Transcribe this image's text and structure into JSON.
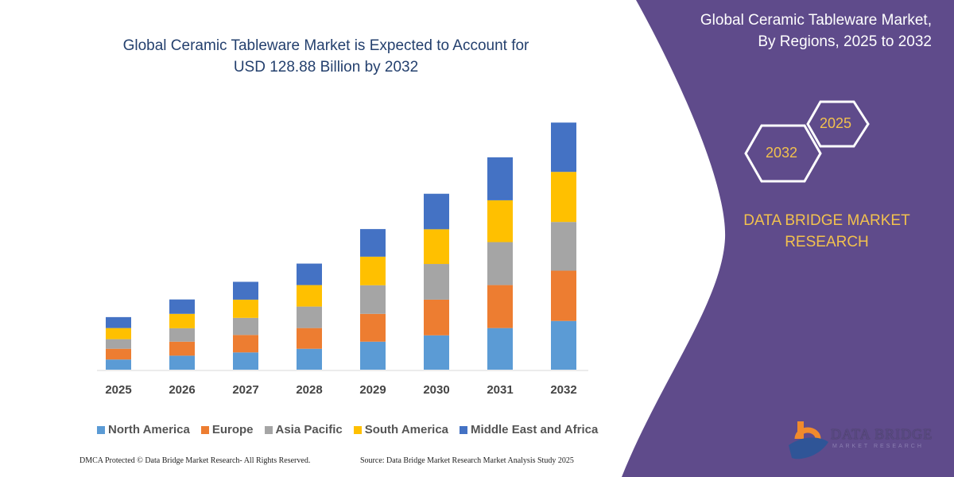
{
  "header": {
    "title_line1": "Global Ceramic Tableware Market is Expected to Account for",
    "title_line2": "USD 128.88 Billion by 2032"
  },
  "side_panel": {
    "title_line1": "Global Ceramic Tableware Market,",
    "title_line2": "By Regions, 2025 to 2032",
    "hex_start": "2025",
    "hex_end": "2032",
    "brand_line1": "DATA BRIDGE MARKET",
    "brand_line2": "RESEARCH",
    "logo_text": "DATA BRIDGE",
    "logo_sub": "MARKET RESEARCH",
    "panel_color": "#5f4b8b",
    "accent_color": "#f2c14e"
  },
  "footer": {
    "left": "DMCA Protected © Data Bridge Market Research-  All Rights Reserved.",
    "right": "Source: Data Bridge Market Research  Market Analysis Study 2025"
  },
  "chart_data": {
    "type": "bar",
    "stacked": true,
    "categories": [
      "2025",
      "2026",
      "2027",
      "2028",
      "2029",
      "2030",
      "2031",
      "2032"
    ],
    "series": [
      {
        "name": "North America",
        "color": "#5b9bd5",
        "values": [
          5.3,
          7.3,
          9.0,
          10.9,
          14.6,
          17.9,
          21.7,
          25.4
        ]
      },
      {
        "name": "Europe",
        "color": "#ed7d31",
        "values": [
          5.6,
          7.3,
          9.1,
          10.8,
          14.5,
          18.6,
          22.4,
          26.2
        ]
      },
      {
        "name": "Asia Pacific",
        "color": "#a5a5a5",
        "values": [
          5.0,
          7.0,
          8.9,
          11.2,
          14.9,
          18.6,
          22.4,
          25.4
        ]
      },
      {
        "name": "South America",
        "color": "#ffc000",
        "values": [
          5.8,
          7.5,
          9.5,
          11.2,
          14.9,
          18.1,
          21.8,
          26.1
        ]
      },
      {
        "name": "Middle East and Africa",
        "color": "#4472c4",
        "values": [
          5.7,
          7.5,
          9.3,
          11.2,
          14.4,
          18.5,
          22.4,
          25.7
        ]
      }
    ],
    "ylim": [
      0,
      128.88
    ],
    "grid": false,
    "legend_position": "bottom"
  }
}
